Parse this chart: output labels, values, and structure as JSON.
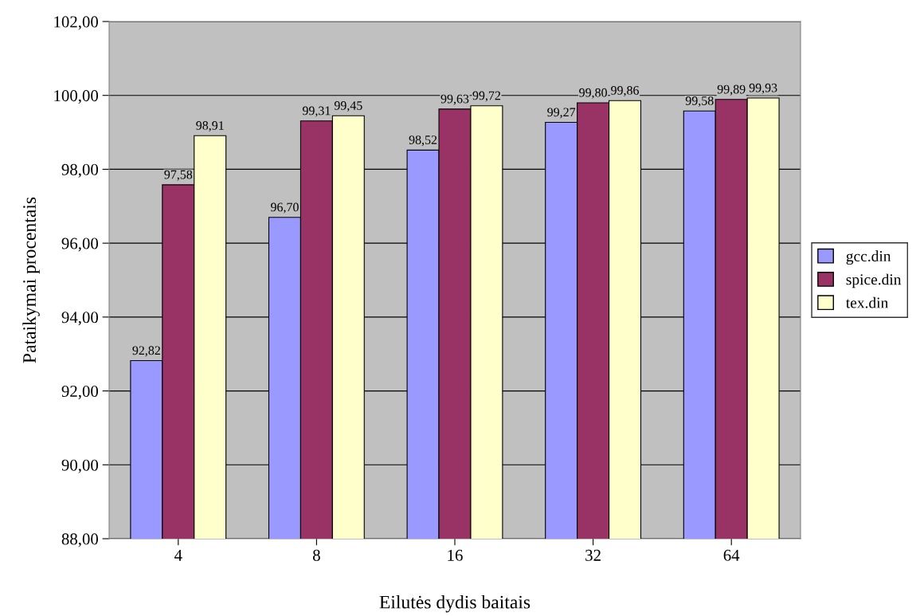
{
  "chart_data": {
    "type": "bar",
    "xlabel": "Eilutės dydis baitais",
    "ylabel": "Pataikymai procentais",
    "categories": [
      "4",
      "8",
      "16",
      "32",
      "64"
    ],
    "series": [
      {
        "name": "gcc.din",
        "color": "#9999ff",
        "values": [
          92.82,
          96.7,
          98.52,
          99.27,
          99.58
        ],
        "value_labels": [
          "92,82",
          "96,70",
          "98,52",
          "99,27",
          "99,58"
        ]
      },
      {
        "name": "spice.din",
        "color": "#993366",
        "values": [
          97.58,
          99.31,
          99.63,
          99.8,
          99.89
        ],
        "value_labels": [
          "97,58",
          "99,31",
          "99,63",
          "99,80",
          "99,89"
        ]
      },
      {
        "name": "tex.din",
        "color": "#ffffcc",
        "values": [
          98.91,
          99.45,
          99.72,
          99.86,
          99.93
        ],
        "value_labels": [
          "98,91",
          "99,45",
          "99,72",
          "99,86",
          "99,93"
        ]
      }
    ],
    "ylim": [
      88,
      102
    ],
    "yticks": [
      {
        "value": 88,
        "label": "88,00"
      },
      {
        "value": 90,
        "label": "90,00"
      },
      {
        "value": 92,
        "label": "92,00"
      },
      {
        "value": 94,
        "label": "94,00"
      },
      {
        "value": 96,
        "label": "96,00"
      },
      {
        "value": 98,
        "label": "98,00"
      },
      {
        "value": 100,
        "label": "100,00"
      },
      {
        "value": 102,
        "label": "102,00"
      }
    ],
    "grid": "y",
    "legend": "right"
  }
}
